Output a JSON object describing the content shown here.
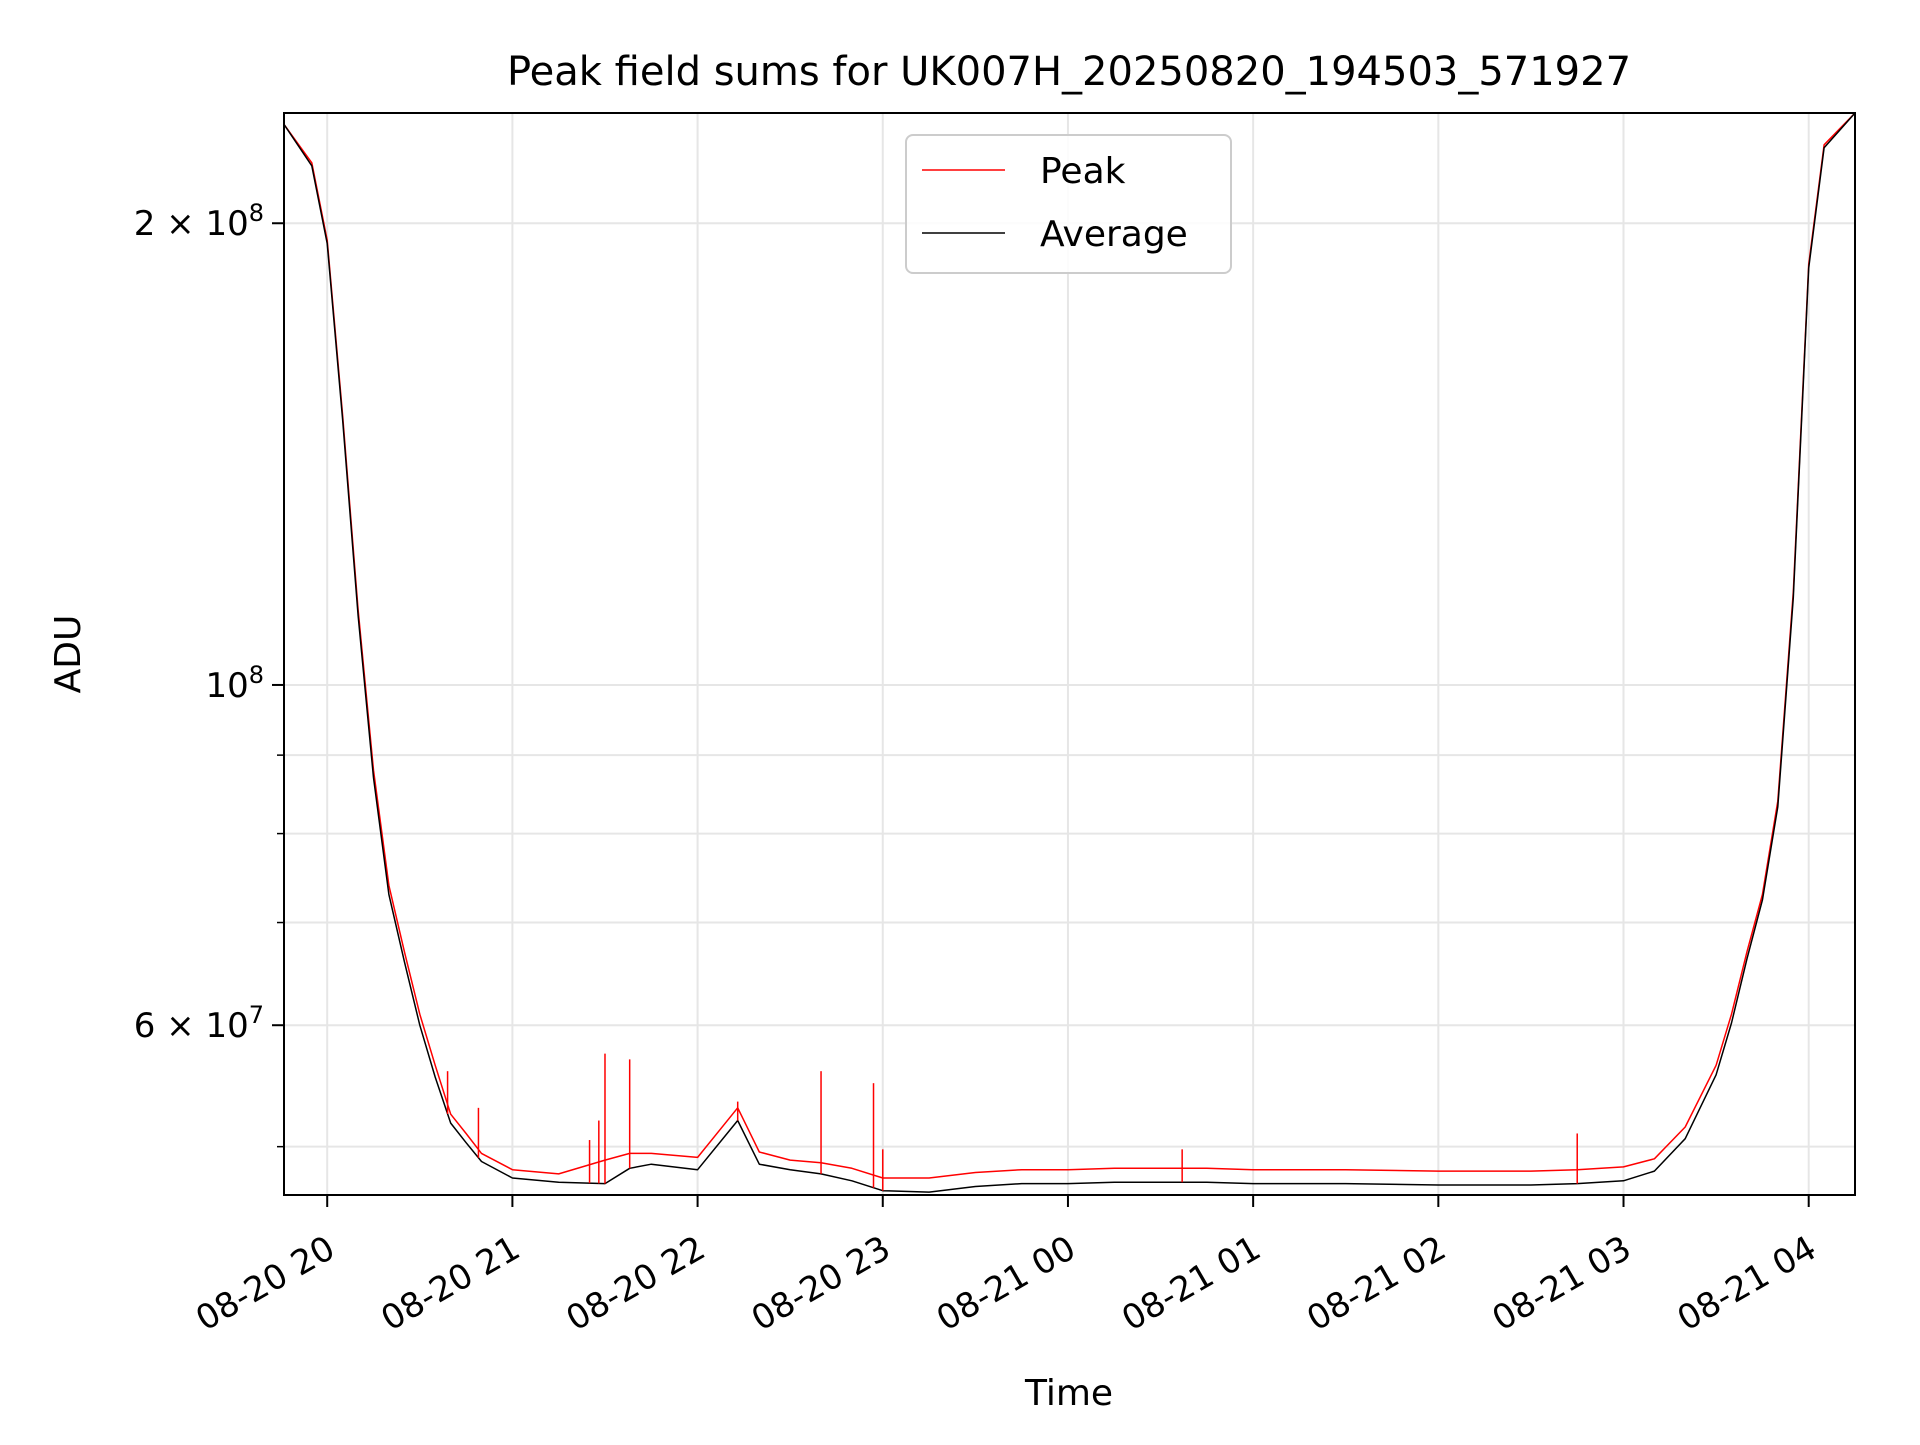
{
  "chart_data": {
    "type": "line",
    "title": "Peak field sums for UK007H_20250820_194503_571927",
    "xlabel": "Time",
    "ylabel": "ADU",
    "y_scale": "log",
    "ylim": [
      46500000,
      236000000
    ],
    "xlim": [
      "2025-08-20 19:46",
      "2025-08-21 04:15"
    ],
    "grid": true,
    "legend_position": "upper center",
    "x_ticks": [
      {
        "t": "2025-08-20 20:00",
        "label": "08-20 20"
      },
      {
        "t": "2025-08-20 21:00",
        "label": "08-20 21"
      },
      {
        "t": "2025-08-20 22:00",
        "label": "08-20 22"
      },
      {
        "t": "2025-08-20 23:00",
        "label": "08-20 23"
      },
      {
        "t": "2025-08-21 00:00",
        "label": "08-21 00"
      },
      {
        "t": "2025-08-21 01:00",
        "label": "08-21 01"
      },
      {
        "t": "2025-08-21 02:00",
        "label": "08-21 02"
      },
      {
        "t": "2025-08-21 03:00",
        "label": "08-21 03"
      },
      {
        "t": "2025-08-21 04:00",
        "label": "08-21 04"
      }
    ],
    "y_major_ticks": [
      {
        "value": 60000000,
        "mant": "6",
        "label": "6 × 10^7"
      },
      {
        "value": 100000000,
        "mant": "",
        "label": "10^8"
      },
      {
        "value": 200000000,
        "mant": "2",
        "label": "2 × 10^8"
      }
    ],
    "y_minor_ticks": [
      50000000,
      70000000,
      80000000,
      90000000
    ],
    "series": [
      {
        "name": "Peak",
        "color": "#ff0000",
        "x": [
          "2025-08-20 19:46",
          "2025-08-20 19:55",
          "2025-08-20 20:00",
          "2025-08-20 20:05",
          "2025-08-20 20:10",
          "2025-08-20 20:15",
          "2025-08-20 20:20",
          "2025-08-20 20:25",
          "2025-08-20 20:30",
          "2025-08-20 20:35",
          "2025-08-20 20:40",
          "2025-08-20 20:45",
          "2025-08-20 20:50",
          "2025-08-20 21:00",
          "2025-08-20 21:15",
          "2025-08-20 21:30",
          "2025-08-20 21:38",
          "2025-08-20 21:45",
          "2025-08-20 22:00",
          "2025-08-20 22:13",
          "2025-08-20 22:20",
          "2025-08-20 22:30",
          "2025-08-20 22:40",
          "2025-08-20 22:50",
          "2025-08-20 23:00",
          "2025-08-20 23:15",
          "2025-08-20 23:30",
          "2025-08-20 23:45",
          "2025-08-21 00:00",
          "2025-08-21 00:15",
          "2025-08-21 00:30",
          "2025-08-21 00:45",
          "2025-08-21 01:00",
          "2025-08-21 01:30",
          "2025-08-21 02:00",
          "2025-08-21 02:30",
          "2025-08-21 02:45",
          "2025-08-21 03:00",
          "2025-08-21 03:10",
          "2025-08-21 03:20",
          "2025-08-21 03:30",
          "2025-08-21 03:35",
          "2025-08-21 03:40",
          "2025-08-21 03:45",
          "2025-08-21 03:50",
          "2025-08-21 03:55",
          "2025-08-21 04:00",
          "2025-08-21 04:05",
          "2025-08-21 04:15"
        ],
        "values": [
          232000000,
          219000000,
          195000000,
          150000000,
          112000000,
          88000000,
          74000000,
          67000000,
          61000000,
          56500000,
          52500000,
          51000000,
          49500000,
          48300000,
          48000000,
          49000000,
          49500000,
          49500000,
          49200000,
          53000000,
          49600000,
          49000000,
          48800000,
          48400000,
          47700000,
          47700000,
          48100000,
          48300000,
          48300000,
          48400000,
          48400000,
          48400000,
          48300000,
          48300000,
          48200000,
          48200000,
          48300000,
          48500000,
          49100000,
          51500000,
          56500000,
          61000000,
          67000000,
          73000000,
          84000000,
          115000000,
          188000000,
          225000000,
          236000000
        ]
      },
      {
        "name": "Average",
        "color": "#000000",
        "x": [
          "2025-08-20 19:46",
          "2025-08-20 19:55",
          "2025-08-20 20:00",
          "2025-08-20 20:05",
          "2025-08-20 20:10",
          "2025-08-20 20:15",
          "2025-08-20 20:20",
          "2025-08-20 20:25",
          "2025-08-20 20:30",
          "2025-08-20 20:35",
          "2025-08-20 20:40",
          "2025-08-20 20:45",
          "2025-08-20 20:50",
          "2025-08-20 21:00",
          "2025-08-20 21:15",
          "2025-08-20 21:30",
          "2025-08-20 21:38",
          "2025-08-20 21:45",
          "2025-08-20 22:00",
          "2025-08-20 22:13",
          "2025-08-20 22:20",
          "2025-08-20 22:30",
          "2025-08-20 22:40",
          "2025-08-20 22:50",
          "2025-08-20 23:00",
          "2025-08-20 23:15",
          "2025-08-20 23:30",
          "2025-08-20 23:45",
          "2025-08-21 00:00",
          "2025-08-21 00:15",
          "2025-08-21 00:30",
          "2025-08-21 00:45",
          "2025-08-21 01:00",
          "2025-08-21 01:30",
          "2025-08-21 02:00",
          "2025-08-21 02:30",
          "2025-08-21 02:45",
          "2025-08-21 03:00",
          "2025-08-21 03:10",
          "2025-08-21 03:20",
          "2025-08-21 03:30",
          "2025-08-21 03:35",
          "2025-08-21 03:40",
          "2025-08-21 03:45",
          "2025-08-21 03:50",
          "2025-08-21 03:55",
          "2025-08-21 04:00",
          "2025-08-21 04:05",
          "2025-08-21 04:15"
        ],
        "values": [
          232000000,
          218000000,
          194000000,
          149000000,
          111000000,
          87000000,
          73000000,
          66000000,
          60000000,
          55500000,
          51800000,
          50300000,
          48900000,
          47700000,
          47400000,
          47300000,
          48400000,
          48700000,
          48300000,
          52000000,
          48700000,
          48300000,
          48000000,
          47500000,
          46800000,
          46700000,
          47100000,
          47300000,
          47300000,
          47400000,
          47400000,
          47400000,
          47300000,
          47300000,
          47200000,
          47200000,
          47300000,
          47500000,
          48200000,
          50600000,
          55700000,
          60200000,
          66300000,
          72400000,
          83300000,
          114000000,
          187000000,
          224000000,
          236000000
        ]
      }
    ],
    "spikes": [
      {
        "t": "2025-08-20 20:39",
        "value": 56000000
      },
      {
        "t": "2025-08-20 20:49",
        "value": 53000000
      },
      {
        "t": "2025-08-20 21:25",
        "value": 50500000
      },
      {
        "t": "2025-08-20 21:28",
        "value": 52000000
      },
      {
        "t": "2025-08-20 21:30",
        "value": 57500000
      },
      {
        "t": "2025-08-20 21:38",
        "value": 57000000
      },
      {
        "t": "2025-08-20 22:13",
        "value": 53500000
      },
      {
        "t": "2025-08-20 22:40",
        "value": 56000000
      },
      {
        "t": "2025-08-20 22:57",
        "value": 55000000
      },
      {
        "t": "2025-08-20 23:00",
        "value": 49800000
      },
      {
        "t": "2025-08-21 00:37",
        "value": 49800000
      },
      {
        "t": "2025-08-21 02:45",
        "value": 51000000
      }
    ],
    "legend": {
      "items": [
        "Peak",
        "Average"
      ]
    }
  }
}
